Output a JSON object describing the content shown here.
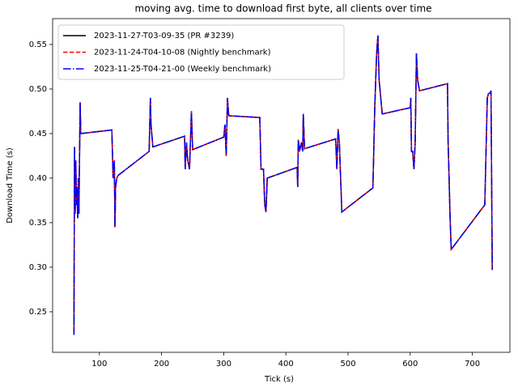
{
  "chart_data": {
    "type": "line",
    "title": "moving avg. time to download first byte, all clients over time",
    "x_label": "Tick (s)",
    "y_label": "Download Time (s)",
    "x": [
      59,
      60,
      61,
      62,
      63,
      64,
      65,
      66,
      67,
      69,
      70,
      120,
      122,
      124,
      125,
      126,
      128,
      130,
      180,
      182,
      183,
      186,
      237,
      238,
      240,
      242,
      245,
      248,
      250,
      300,
      302,
      304,
      306,
      308,
      358,
      360,
      364,
      366,
      368,
      370,
      418,
      419,
      420,
      422,
      425,
      427,
      428,
      430,
      480,
      482,
      484,
      486,
      490,
      540,
      543,
      546,
      548,
      550,
      555,
      600,
      601,
      602,
      604,
      606,
      608,
      610,
      612,
      615,
      660,
      661,
      662,
      664,
      666,
      720,
      724,
      726,
      728,
      730,
      732
    ],
    "series": [
      {
        "name": "2023-11-27-T03-09-35 (PR #3239)",
        "color": "#000000",
        "dash": "solid",
        "values": [
          0.224,
          0.435,
          0.36,
          0.42,
          0.37,
          0.39,
          0.355,
          0.4,
          0.36,
          0.485,
          0.45,
          0.454,
          0.4,
          0.42,
          0.345,
          0.39,
          0.4,
          0.403,
          0.43,
          0.49,
          0.46,
          0.435,
          0.447,
          0.41,
          0.44,
          0.42,
          0.41,
          0.475,
          0.432,
          0.446,
          0.46,
          0.425,
          0.49,
          0.47,
          0.468,
          0.41,
          0.41,
          0.37,
          0.362,
          0.4,
          0.412,
          0.39,
          0.443,
          0.43,
          0.44,
          0.43,
          0.472,
          0.433,
          0.444,
          0.41,
          0.455,
          0.44,
          0.362,
          0.389,
          0.48,
          0.54,
          0.56,
          0.51,
          0.472,
          0.479,
          0.49,
          0.43,
          0.43,
          0.41,
          0.44,
          0.54,
          0.51,
          0.498,
          0.506,
          0.44,
          0.415,
          0.36,
          0.32,
          0.37,
          0.49,
          0.495,
          0.495,
          0.498,
          0.297
        ]
      },
      {
        "name": "2023-11-24-T04-10-08 (Nightly benchmark)",
        "color": "#ff0000",
        "dash": "dashed",
        "values": [
          0.224,
          0.435,
          0.36,
          0.42,
          0.37,
          0.39,
          0.355,
          0.4,
          0.36,
          0.485,
          0.45,
          0.454,
          0.4,
          0.42,
          0.345,
          0.39,
          0.4,
          0.403,
          0.43,
          0.49,
          0.46,
          0.435,
          0.447,
          0.41,
          0.44,
          0.42,
          0.41,
          0.475,
          0.432,
          0.446,
          0.46,
          0.425,
          0.49,
          0.47,
          0.468,
          0.41,
          0.41,
          0.37,
          0.362,
          0.4,
          0.412,
          0.39,
          0.443,
          0.43,
          0.44,
          0.43,
          0.472,
          0.433,
          0.444,
          0.41,
          0.455,
          0.44,
          0.362,
          0.389,
          0.48,
          0.54,
          0.56,
          0.51,
          0.472,
          0.479,
          0.49,
          0.43,
          0.43,
          0.41,
          0.44,
          0.54,
          0.51,
          0.498,
          0.506,
          0.44,
          0.415,
          0.36,
          0.32,
          0.37,
          0.49,
          0.495,
          0.495,
          0.498,
          0.297
        ]
      },
      {
        "name": "2023-11-25-T04-21-00 (Weekly benchmark)",
        "color": "#0000ff",
        "dash": "dashdot",
        "values": [
          0.224,
          0.435,
          0.36,
          0.42,
          0.37,
          0.39,
          0.355,
          0.4,
          0.36,
          0.485,
          0.45,
          0.454,
          0.4,
          0.42,
          0.345,
          0.39,
          0.4,
          0.403,
          0.43,
          0.49,
          0.46,
          0.435,
          0.447,
          0.41,
          0.44,
          0.42,
          0.41,
          0.475,
          0.432,
          0.446,
          0.46,
          0.425,
          0.49,
          0.47,
          0.468,
          0.41,
          0.41,
          0.37,
          0.362,
          0.4,
          0.412,
          0.39,
          0.443,
          0.43,
          0.44,
          0.43,
          0.472,
          0.433,
          0.444,
          0.41,
          0.455,
          0.44,
          0.362,
          0.389,
          0.48,
          0.54,
          0.56,
          0.51,
          0.472,
          0.479,
          0.49,
          0.43,
          0.43,
          0.41,
          0.44,
          0.54,
          0.51,
          0.498,
          0.506,
          0.44,
          0.415,
          0.36,
          0.32,
          0.37,
          0.49,
          0.495,
          0.495,
          0.498,
          0.297
        ]
      }
    ],
    "xlim": [
      24.7,
      760.4
    ],
    "ylim": [
      0.2045,
      0.579
    ],
    "xticks": [
      100,
      200,
      300,
      400,
      500,
      600,
      700
    ],
    "yticks": [
      0.25,
      {
        "value": 0.3,
        "label": "0.30"
      },
      0.35,
      {
        "value": 0.4,
        "label": "0.40"
      },
      0.45,
      {
        "value": 0.5,
        "label": "0.50"
      },
      0.55
    ],
    "legend": "upper left",
    "grid": false
  }
}
